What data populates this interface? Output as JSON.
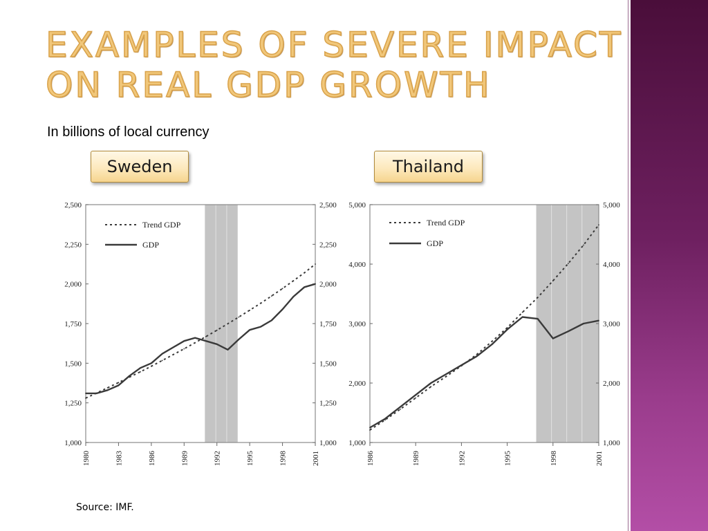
{
  "slide": {
    "title_line1": "Examples of Severe Impact",
    "title_line2": "on real GDP Growth",
    "subtitle": "In billions of local currency",
    "source": "Source: IMF.",
    "accent_color": "#f1c77a",
    "sidebar_color": "#7a2a6e"
  },
  "chart_data": [
    {
      "label": "Sweden",
      "type": "line",
      "xlim": [
        1980,
        2001
      ],
      "ylim": [
        1000,
        2500
      ],
      "yticks": [
        "1,000",
        "1,250",
        "1,500",
        "1,750",
        "2,000",
        "2,250",
        "2,500"
      ],
      "xticks": [
        "1980",
        "1983",
        "1986",
        "1989",
        "1992",
        "1995",
        "1998",
        "2001"
      ],
      "shaded_x": [
        1990.9,
        1993.9
      ],
      "shaded_dividers": [
        1991.9,
        1992.9
      ],
      "grid": false,
      "legend_position": "top-left",
      "series": [
        {
          "name": "Trend GDP",
          "style": "dotted",
          "x": [
            1980,
            1981,
            1982,
            1983,
            1984,
            1985,
            1986,
            1987,
            1988,
            1989,
            1990,
            1991,
            1992,
            1993,
            1994,
            1995,
            1996,
            1997,
            1998,
            1999,
            2000,
            2001
          ],
          "values": [
            1280,
            1312,
            1345,
            1378,
            1412,
            1446,
            1481,
            1517,
            1554,
            1591,
            1629,
            1668,
            1708,
            1749,
            1791,
            1834,
            1878,
            1924,
            1971,
            2020,
            2070,
            2125
          ]
        },
        {
          "name": "GDP",
          "style": "solid",
          "x": [
            1980,
            1981,
            1982,
            1983,
            1984,
            1985,
            1986,
            1987,
            1988,
            1989,
            1990,
            1991,
            1992,
            1993,
            1994,
            1995,
            1996,
            1997,
            1998,
            1999,
            2000,
            2001
          ],
          "values": [
            1310,
            1310,
            1330,
            1360,
            1420,
            1470,
            1500,
            1560,
            1600,
            1640,
            1660,
            1640,
            1620,
            1585,
            1650,
            1710,
            1730,
            1770,
            1840,
            1920,
            1980,
            2000
          ]
        }
      ]
    },
    {
      "label": "Thailand",
      "type": "line",
      "xlim": [
        1986,
        2001
      ],
      "ylim": [
        1000,
        5000
      ],
      "yticks": [
        "1,000",
        "2,000",
        "3,000",
        "4,000",
        "5,000"
      ],
      "xticks": [
        "1986",
        "1989",
        "1992",
        "1995",
        "1998",
        "2001"
      ],
      "shaded_x": [
        1996.9,
        2001
      ],
      "shaded_dividers": [
        1997.9,
        1998.9,
        1999.9
      ],
      "grid": false,
      "legend_position": "top-left",
      "series": [
        {
          "name": "Trend GDP",
          "style": "dotted",
          "x": [
            1986,
            1987,
            1988,
            1989,
            1990,
            1991,
            1992,
            1993,
            1994,
            1995,
            1996,
            1997,
            1998,
            1999,
            2000,
            2001
          ],
          "values": [
            1210,
            1380,
            1560,
            1750,
            1940,
            2110,
            2290,
            2480,
            2700,
            2930,
            3190,
            3440,
            3720,
            4010,
            4320,
            4660
          ]
        },
        {
          "name": "GDP",
          "style": "solid",
          "x": [
            1986,
            1987,
            1988,
            1989,
            1990,
            1991,
            1992,
            1993,
            1994,
            1995,
            1996,
            1997,
            1998,
            1999,
            2000,
            2001
          ],
          "values": [
            1250,
            1400,
            1600,
            1800,
            2000,
            2150,
            2300,
            2450,
            2650,
            2900,
            3110,
            3080,
            2750,
            2870,
            3000,
            3050
          ]
        }
      ]
    }
  ]
}
